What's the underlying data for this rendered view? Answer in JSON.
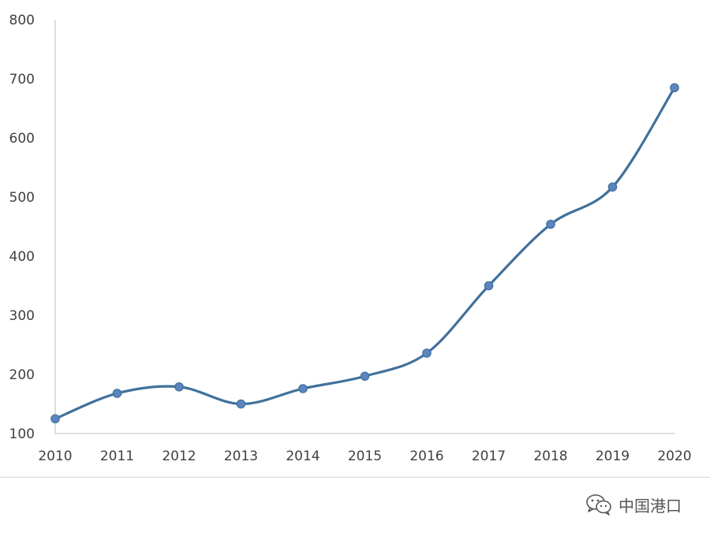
{
  "chart_data": {
    "type": "line",
    "title": "",
    "xlabel": "",
    "ylabel": "",
    "x": [
      "2010",
      "2011",
      "2012",
      "2013",
      "2014",
      "2015",
      "2016",
      "2017",
      "2018",
      "2019",
      "2020"
    ],
    "series": [
      {
        "values": [
          125,
          168,
          179,
          150,
          176,
          197,
          236,
          350,
          454,
          517,
          685
        ]
      }
    ],
    "ylim": [
      100,
      800
    ],
    "yticks": [
      "100",
      "200",
      "300",
      "400",
      "500",
      "600",
      "700",
      "800"
    ],
    "smooth": true,
    "markers": true,
    "grid": false,
    "legend": "none",
    "line_color": "#41719c",
    "marker_color": "#5b85be",
    "axis_color": "#bfbfbf"
  },
  "watermark": {
    "text": "中国港口",
    "icon": "wechat-icon"
  }
}
